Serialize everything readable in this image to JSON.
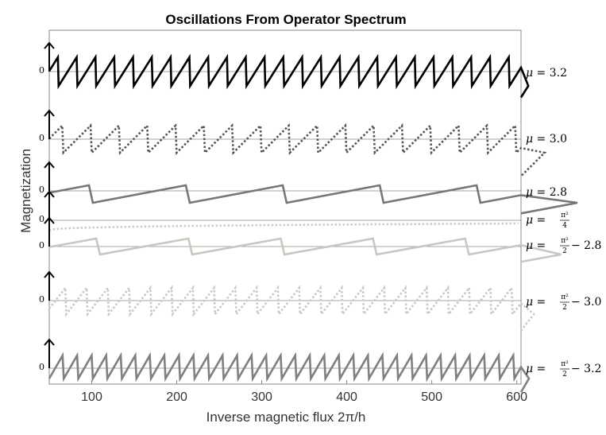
{
  "chart_data": {
    "type": "line",
    "title": "Oscillations From Operator Spectrum",
    "xlabel": "Inverse magnetic flux 2π/h",
    "ylabel": "Magnetization",
    "xlim": [
      50,
      605
    ],
    "xticks": [
      "100",
      "200",
      "300",
      "400",
      "500",
      "600"
    ],
    "xtick_values": [
      100,
      200,
      300,
      400,
      500,
      600
    ],
    "zero_label": "0",
    "series": [
      {
        "name": "mu = 3.2",
        "label": {
          "mu": "μ",
          "eq": " = 3.2"
        },
        "color": "#000000",
        "dash": "solid",
        "period": 22.1,
        "phase": 0.5,
        "amplitude": 1.0,
        "rising": "slow"
      },
      {
        "name": "mu = 3.0",
        "label": {
          "mu": "μ",
          "eq": " = 3.0"
        },
        "color": "#555555",
        "dash": "dotted",
        "period": 33.3,
        "phase": 0.5,
        "amplitude": 1.0,
        "rising": "slow"
      },
      {
        "name": "mu = 2.8",
        "label": {
          "mu": "μ",
          "eq": " = 2.8"
        },
        "color": "#777777",
        "dash": "solid",
        "period": 114.0,
        "phase": 0.55,
        "amplitude": 1.0,
        "rising": "slow"
      },
      {
        "name": "mu = pi^2/4",
        "label": {
          "mu": "μ",
          "eq": " = ",
          "num": "π²",
          "den": "4",
          "rest": ""
        },
        "color": "#cccccc",
        "dash": "dotted",
        "shape": "monotone"
      },
      {
        "name": "mu = pi^2/2 - 2.8",
        "label": {
          "mu": "μ",
          "eq": " = ",
          "num": "π²",
          "den": "2",
          "rest": " − 2.8"
        },
        "color": "#c8c8be",
        "dash": "solid",
        "period": 108.5,
        "phase": 0.45,
        "amplitude": 1.0,
        "rising": "slow"
      },
      {
        "name": "mu = pi^2/2 - 3.0",
        "label": {
          "mu": "μ",
          "eq": " = ",
          "num": "π²",
          "den": "2",
          "rest": " − 3.0"
        },
        "color": "#c8c8c8",
        "dash": "dotted",
        "period": 25.0,
        "phase": 0.2,
        "amplitude": 1.0,
        "rising": "slow"
      },
      {
        "name": "mu = pi^2/2 - 3.2",
        "label": {
          "mu": "μ",
          "eq": " = ",
          "num": "π²",
          "den": "2",
          "rest": " − 3.2"
        },
        "color": "#808080",
        "dash": "solid",
        "period": 17.1,
        "phase": 0.0,
        "amplitude": 1.0,
        "rising": "fast"
      }
    ]
  }
}
